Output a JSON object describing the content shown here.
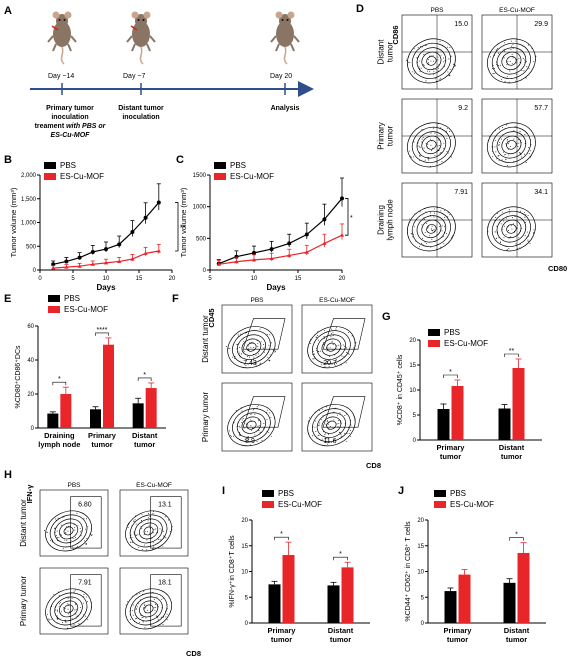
{
  "panel_labels": {
    "A": "A",
    "B": "B",
    "C": "C",
    "D": "D",
    "E": "E",
    "F": "F",
    "G": "G",
    "H": "H",
    "I": "I",
    "J": "J"
  },
  "colors": {
    "pbs": "#000000",
    "treat": "#e8262a",
    "timeline": "#2f4e8a",
    "mouse": "#8a7565"
  },
  "timeline": {
    "day1": "Day −14",
    "day2": "Day −7",
    "day3": "Day 20",
    "ev1_l1": "Primary tumor",
    "ev1_l2": "inoculation",
    "ev1_l3a": "treament ",
    "ev1_l3b": "with PBS or",
    "ev1_l4": "ES-Cu-MOF",
    "ev2_l1": "Distant tumor",
    "ev2_l2": "inoculation",
    "ev3": "Analysis"
  },
  "legend": {
    "pbs": "PBS",
    "treat": "ES-Cu-MOF"
  },
  "chart_data": [
    {
      "panel": "B",
      "type": "line",
      "xlabel": "Days",
      "ylabel": "Tumor volume (mm³)",
      "xlim": [
        0,
        20
      ],
      "ylim": [
        0,
        2000
      ],
      "xticks": [
        "0",
        "5",
        "10",
        "15",
        "20"
      ],
      "yticks": [
        "0",
        "500",
        "1,000",
        "1,500",
        "2,000"
      ],
      "x": [
        2,
        4,
        6,
        8,
        10,
        12,
        14,
        16,
        18
      ],
      "series": [
        {
          "name": "PBS",
          "values": [
            120,
            180,
            260,
            380,
            440,
            540,
            800,
            1100,
            1420
          ]
        },
        {
          "name": "ES-Cu-MOF",
          "values": [
            40,
            60,
            80,
            120,
            150,
            180,
            230,
            350,
            400
          ]
        }
      ],
      "annotation": "**"
    },
    {
      "panel": "C",
      "type": "line",
      "xlabel": "Days",
      "ylabel": "Tumor volume (mm³)",
      "xlim": [
        5,
        20
      ],
      "ylim": [
        0,
        1500
      ],
      "xticks": [
        "5",
        "10",
        "15",
        "20"
      ],
      "yticks": [
        "0",
        "500",
        "1000",
        "1500"
      ],
      "x": [
        6,
        8,
        10,
        12,
        14,
        16,
        18,
        20
      ],
      "series": [
        {
          "name": "PBS",
          "values": [
            100,
            210,
            270,
            330,
            420,
            560,
            800,
            1130
          ]
        },
        {
          "name": "ES-Cu-MOF",
          "values": [
            90,
            130,
            160,
            180,
            230,
            280,
            420,
            550
          ]
        }
      ],
      "annotation": "*"
    },
    {
      "panel": "E",
      "type": "bar",
      "ylabel": "%CD80⁺CD86⁺DCs",
      "ylim": [
        0,
        60
      ],
      "yticks": [
        "0",
        "20",
        "40",
        "60"
      ],
      "categories": [
        "Draining lymph node",
        "Primary tumor",
        "Distant tumor"
      ],
      "cat_lines": [
        [
          "Draining",
          "lymph node"
        ],
        [
          "Primary",
          "tumor"
        ],
        [
          "Distant",
          "tumor"
        ]
      ],
      "series": [
        {
          "name": "PBS",
          "values": [
            8.5,
            11,
            14.5
          ],
          "err": [
            1,
            1.5,
            3
          ]
        },
        {
          "name": "ES-Cu-MOF",
          "values": [
            20,
            49,
            23.5
          ],
          "err": [
            4,
            4,
            3
          ]
        }
      ],
      "sig": [
        "*",
        "****",
        "*"
      ]
    },
    {
      "panel": "G",
      "type": "bar",
      "ylabel": "%CD8⁺ in CD45⁺ cells",
      "ylim": [
        0,
        20
      ],
      "yticks": [
        "0",
        "5",
        "10",
        "15",
        "20"
      ],
      "categories": [
        "Primary tumor",
        "Distant tumor"
      ],
      "cat_lines": [
        [
          "Primary",
          "tumor"
        ],
        [
          "Distant",
          "tumor"
        ]
      ],
      "series": [
        {
          "name": "PBS",
          "values": [
            6.2,
            6.3
          ],
          "err": [
            1,
            0.8
          ]
        },
        {
          "name": "ES-Cu-MOF",
          "values": [
            10.8,
            14.4
          ],
          "err": [
            1.2,
            1.8
          ]
        }
      ],
      "sig": [
        "*",
        "**"
      ]
    },
    {
      "panel": "I",
      "type": "bar",
      "ylabel": "%IFN-γ⁺in CD8⁺T cells",
      "ylim": [
        0,
        20
      ],
      "yticks": [
        "0",
        "5",
        "10",
        "15",
        "20"
      ],
      "categories": [
        "Primary tumor",
        "Distant tumor"
      ],
      "cat_lines": [
        [
          "Primary",
          "tumor"
        ],
        [
          "Distant",
          "tumor"
        ]
      ],
      "series": [
        {
          "name": "PBS",
          "values": [
            7.5,
            7.3
          ],
          "err": [
            0.6,
            0.6
          ]
        },
        {
          "name": "ES-Cu-MOF",
          "values": [
            13.2,
            10.8
          ],
          "err": [
            2.5,
            1
          ]
        }
      ],
      "sig": [
        "*",
        "*"
      ]
    },
    {
      "panel": "J",
      "type": "bar",
      "ylabel": "%CD44⁺ CD62⁺ in CD8⁺ T cells",
      "ylim": [
        0,
        20
      ],
      "yticks": [
        "0",
        "5",
        "10",
        "15",
        "20"
      ],
      "categories": [
        "Primary tumor",
        "Distant tumor"
      ],
      "cat_lines": [
        [
          "Primary",
          "tumor"
        ],
        [
          "Distant",
          "tumor"
        ]
      ],
      "series": [
        {
          "name": "PBS",
          "values": [
            6.2,
            7.8
          ],
          "err": [
            0.6,
            0.8
          ]
        },
        {
          "name": "ES-Cu-MOF",
          "values": [
            9.4,
            13.6
          ],
          "err": [
            1,
            2
          ]
        }
      ],
      "sig": [
        "",
        "*"
      ]
    }
  ],
  "flow": {
    "D": {
      "cols": [
        "PBS",
        "ES-Cu-MOF"
      ],
      "rows": [
        [
          "Distant",
          "tumor"
        ],
        [
          "Primary",
          "tumor"
        ],
        [
          "Draining",
          "lymph node"
        ]
      ],
      "values": [
        "15.0",
        "29.9",
        "9.2",
        "57.7",
        "7.91",
        "34.1"
      ],
      "xaxis": "CD80",
      "yaxis": "CD86"
    },
    "F": {
      "cols": [
        "PBS",
        "ES-Cu-MOF"
      ],
      "rows": [
        "Distant tumor",
        "Primary tumor"
      ],
      "values": [
        "7.43",
        "20.7",
        "8.9",
        "11.6"
      ],
      "xaxis": "CD8",
      "yaxis": "CD45"
    },
    "H": {
      "cols": [
        "PBS",
        "ES-Cu-MOF"
      ],
      "rows": [
        "Distant tumor",
        "Primary tumor"
      ],
      "values": [
        "6.80",
        "13.1",
        "7.91",
        "18.1"
      ],
      "xaxis": "CD8",
      "yaxis": "IFN-γ"
    }
  }
}
